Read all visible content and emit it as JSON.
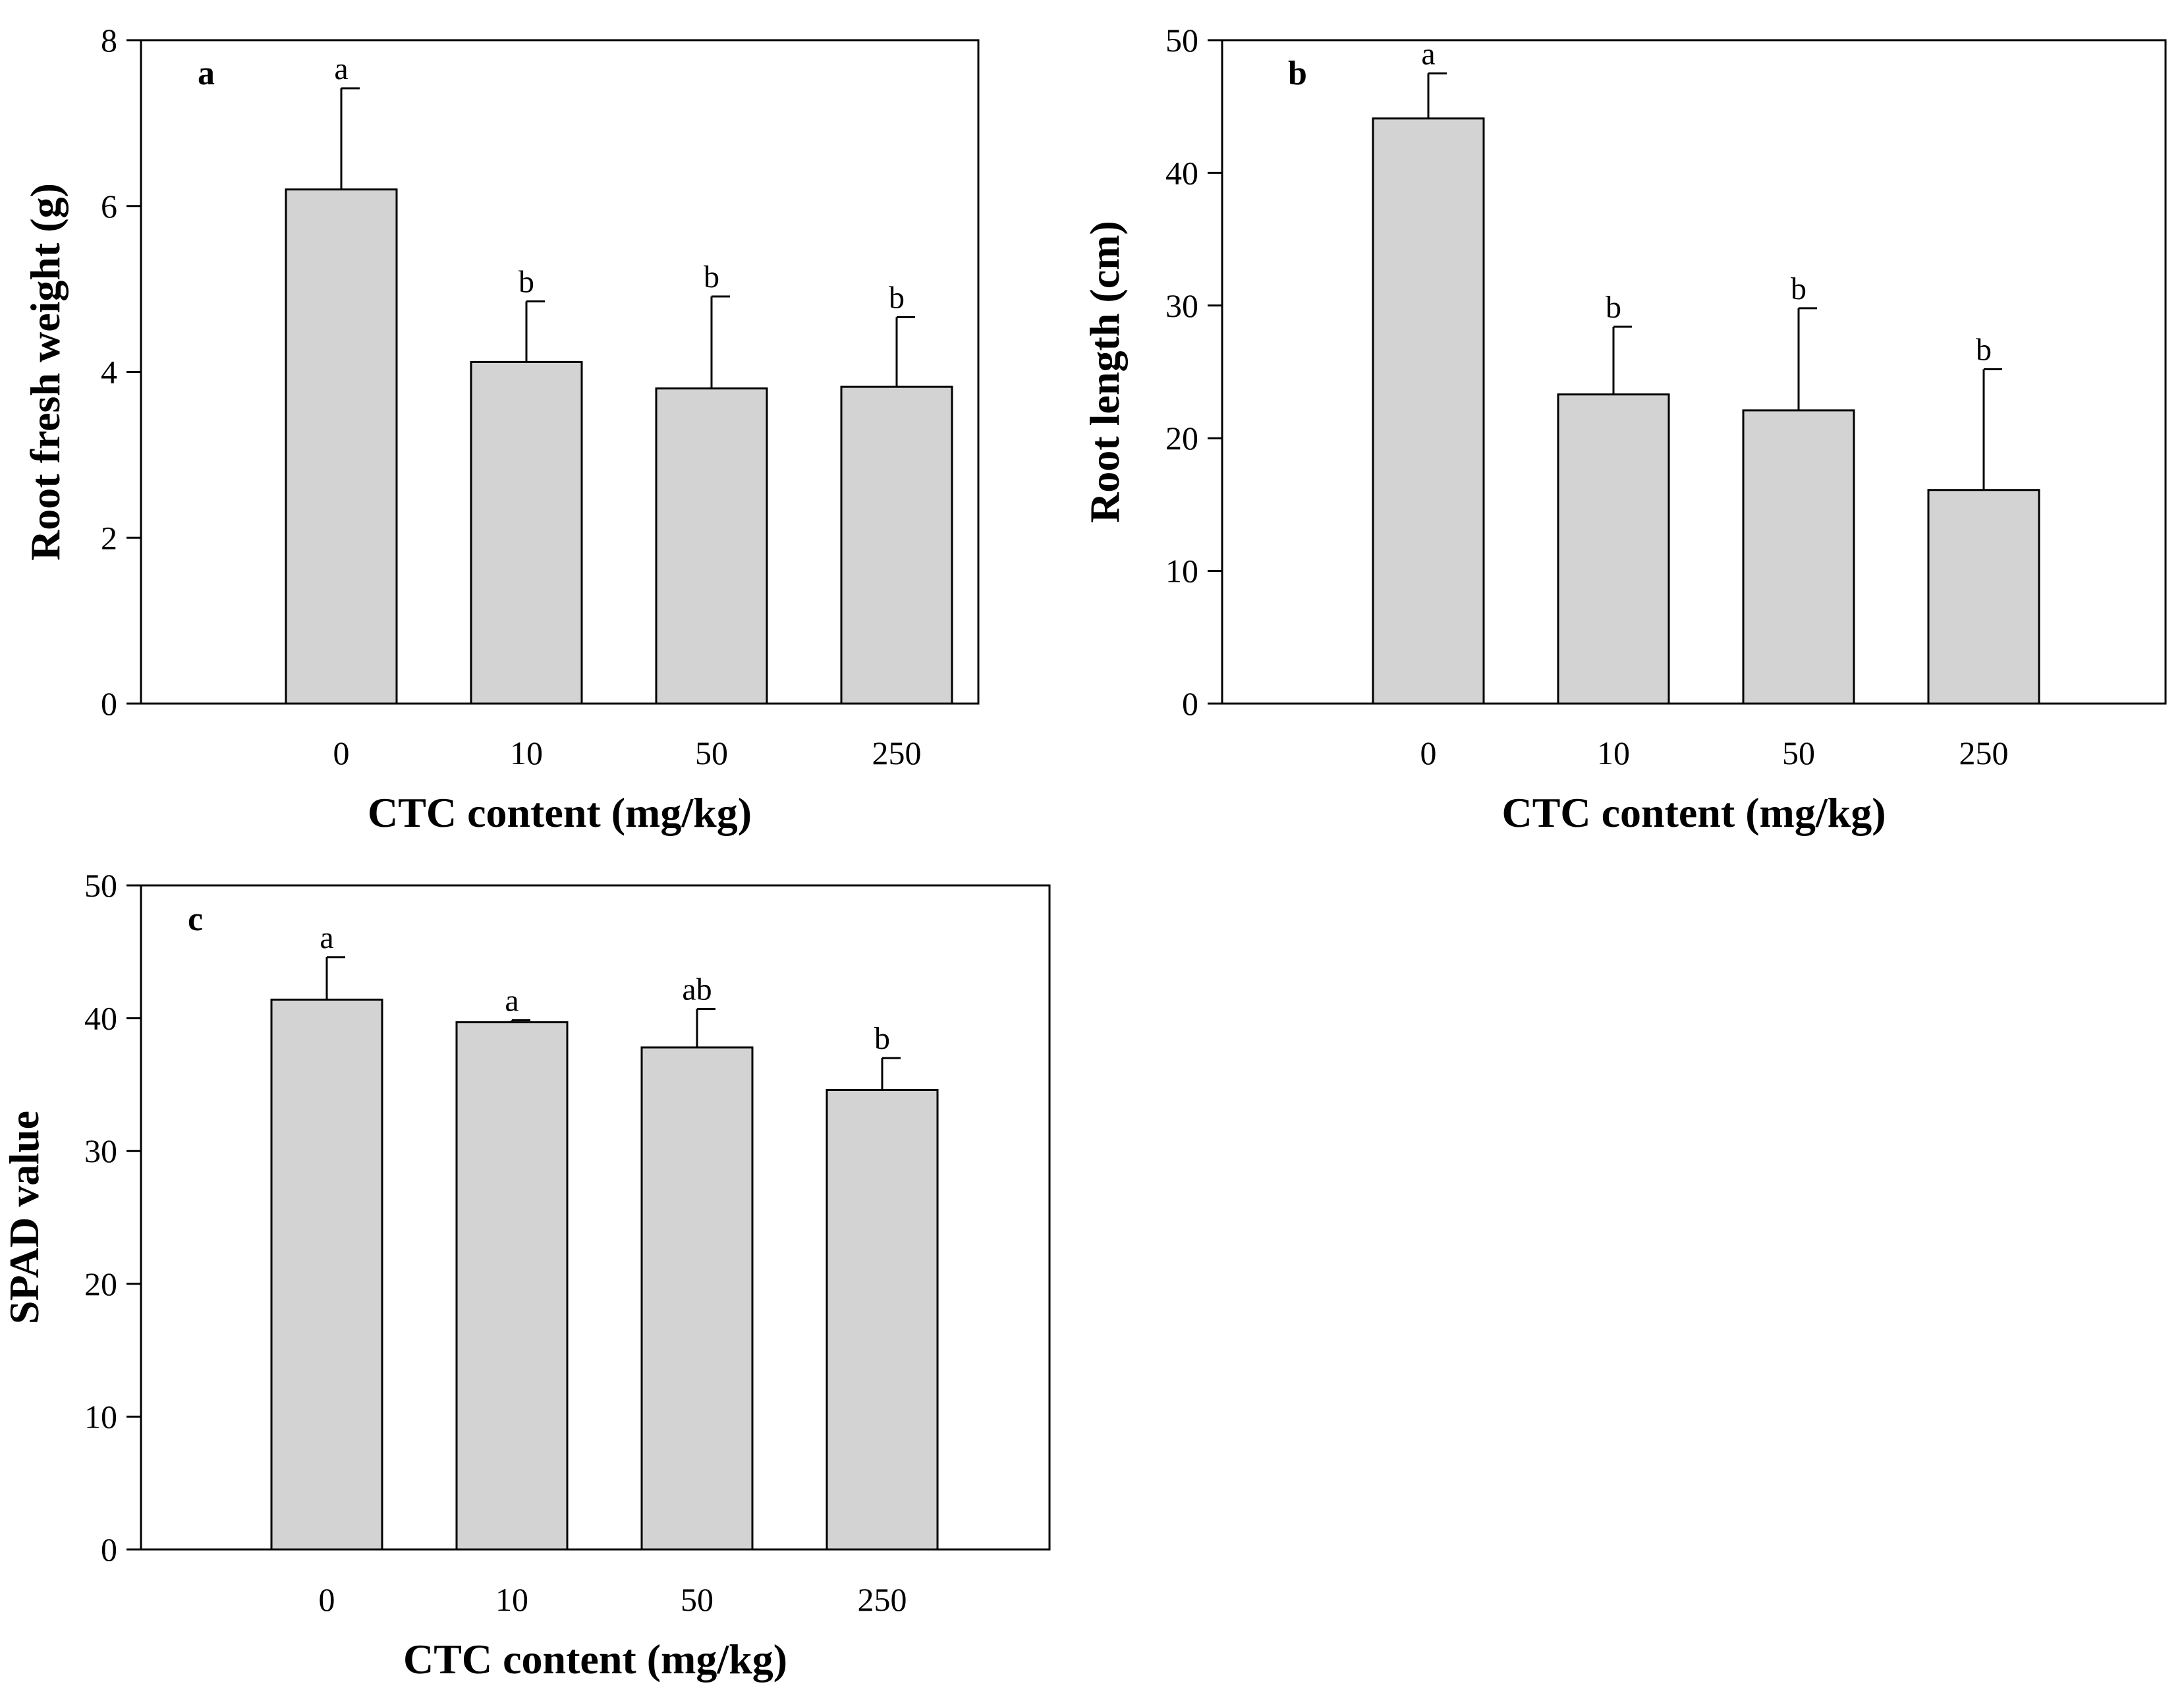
{
  "colors": {
    "bar_fill": "#d3d3d3",
    "bar_stroke": "#000000",
    "axis": "#000000",
    "background": "#ffffff"
  },
  "chart_data": [
    {
      "type": "bar",
      "panel": "a",
      "title": "",
      "xlabel": "CTC content (mg/kg)",
      "ylabel": "Root fresh weight (g)",
      "categories": [
        "0",
        "10",
        "50",
        "250"
      ],
      "values": [
        6.2,
        4.12,
        3.8,
        3.82
      ],
      "errors": [
        1.22,
        0.73,
        1.11,
        0.84
      ],
      "significance": [
        "a",
        "b",
        "b",
        "b"
      ],
      "ylim": [
        0,
        8
      ],
      "yticks": [
        0,
        2,
        4,
        6,
        8
      ],
      "grid": false
    },
    {
      "type": "bar",
      "panel": "b",
      "title": "",
      "xlabel": "CTC content (mg/kg)",
      "ylabel": "Root length (cm)",
      "categories": [
        "0",
        "10",
        "50",
        "250"
      ],
      "values": [
        44.1,
        23.3,
        22.1,
        16.1
      ],
      "errors": [
        3.4,
        5.1,
        7.7,
        9.1
      ],
      "significance": [
        "a",
        "b",
        "b",
        "b"
      ],
      "ylim": [
        0,
        50
      ],
      "yticks": [
        0,
        10,
        20,
        30,
        40,
        50
      ],
      "grid": false
    },
    {
      "type": "bar",
      "panel": "c",
      "title": "",
      "xlabel": "CTC content (mg/kg)",
      "ylabel": "SPAD value",
      "categories": [
        "0",
        "10",
        "50",
        "250"
      ],
      "values": [
        41.4,
        39.7,
        37.8,
        34.6
      ],
      "errors": [
        3.2,
        0.15,
        2.9,
        2.4
      ],
      "significance": [
        "a",
        "a",
        "ab",
        "b"
      ],
      "ylim": [
        0,
        50
      ],
      "yticks": [
        0,
        10,
        20,
        30,
        40,
        50
      ],
      "grid": false
    }
  ]
}
